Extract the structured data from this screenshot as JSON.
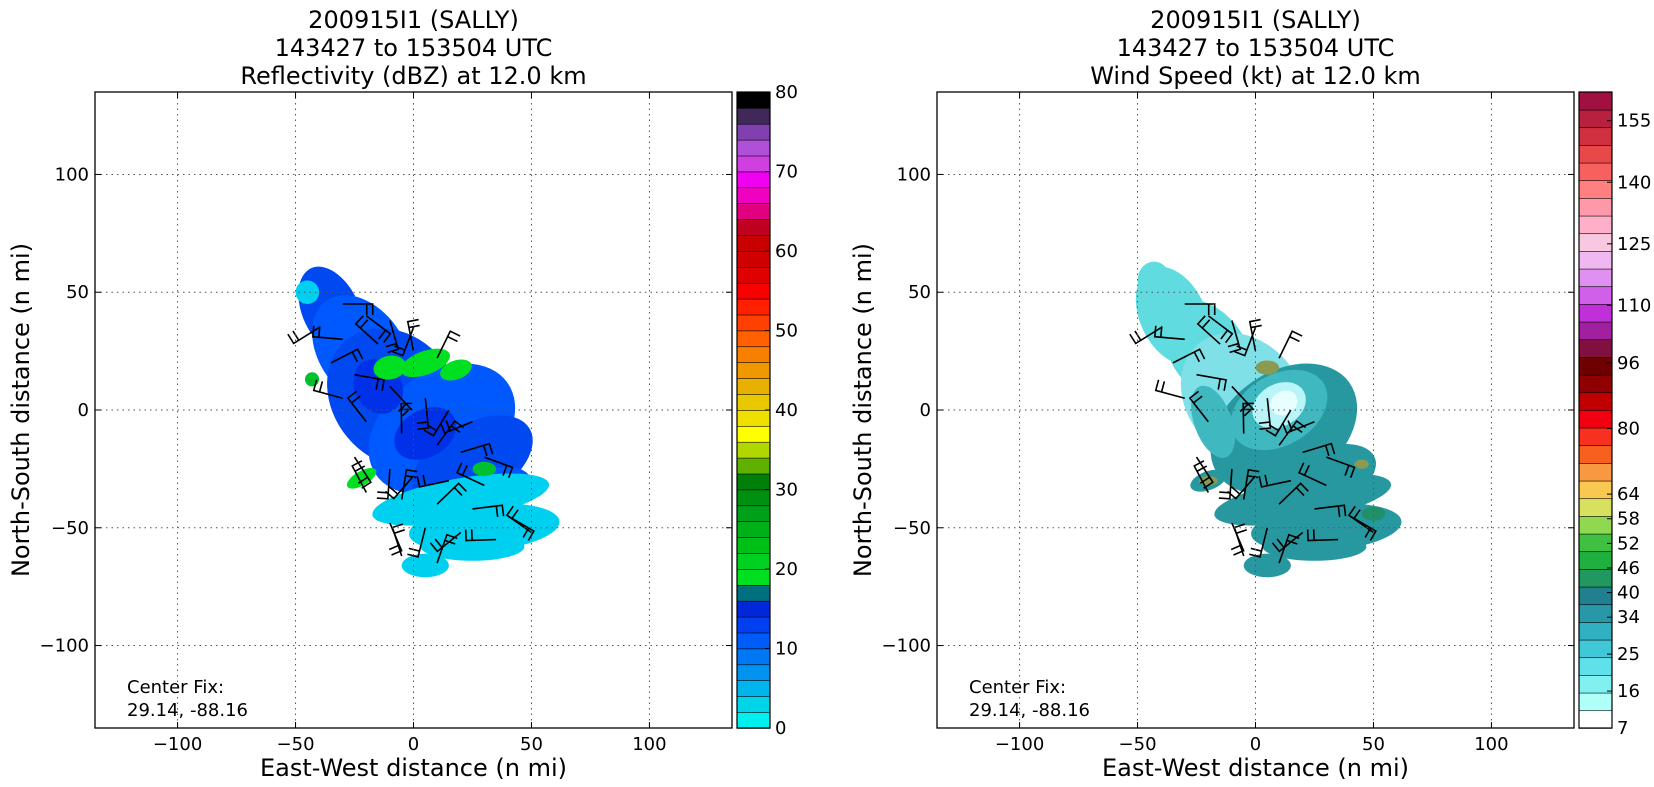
{
  "chart_data": [
    {
      "type": "heatmap",
      "title_lines": [
        "200915I1 (SALLY)",
        "143427 to 153504 UTC",
        "Reflectivity (dBZ) at 12.0 km"
      ],
      "xlabel": "East-West distance (n mi)",
      "ylabel": "North-South distance (n mi)",
      "xlim": [
        -135,
        135
      ],
      "ylim": [
        -135,
        135
      ],
      "xticks": [
        -100,
        -50,
        0,
        50,
        100
      ],
      "yticks": [
        -100,
        -50,
        0,
        50,
        100
      ],
      "xtick_labels": [
        "−100",
        "−50",
        "0",
        "50",
        "100"
      ],
      "ytick_labels": [
        "−100",
        "−50",
        "0",
        "50",
        "100"
      ],
      "grid": true,
      "annotation": [
        "Center Fix:",
        "29.14, -88.16"
      ],
      "colorbar": {
        "min": 0,
        "max": 80,
        "tick_values": [
          0,
          10,
          20,
          30,
          40,
          50,
          60,
          70,
          80
        ],
        "tick_labels": [
          "0",
          "10",
          "20",
          "30",
          "40",
          "50",
          "60",
          "70",
          "80"
        ],
        "colors": [
          "#00f0f0",
          "#00d4e8",
          "#00b4ec",
          "#0094f0",
          "#0078f4",
          "#005cf8",
          "#0040f0",
          "#0028d8",
          "#00707f",
          "#00e020",
          "#00d020",
          "#00c018",
          "#00b018",
          "#00a018",
          "#009010",
          "#008008",
          "#60b000",
          "#b0d800",
          "#ffff00",
          "#f0e000",
          "#e8c800",
          "#e8b000",
          "#f09800",
          "#f88000",
          "#ff6000",
          "#ff4000",
          "#ff2000",
          "#f80000",
          "#e00000",
          "#d00000",
          "#c80000",
          "#c00020",
          "#e00080",
          "#f000c0",
          "#f000f0",
          "#d040e0",
          "#b050d8",
          "#8040b0",
          "#402858",
          "#000000"
        ]
      },
      "field": {
        "colors": [
          "#00a8f0",
          "#0048f0",
          "#0058ff",
          "#0030e8",
          "#00e020",
          "#00c030",
          "#00d0f0",
          "#00a0b0"
        ],
        "blobs": [
          {
            "x": -35,
            "y": 42,
            "rx": 12,
            "ry": 20,
            "rot": -25,
            "c": 1
          },
          {
            "x": -22,
            "y": 25,
            "rx": 18,
            "ry": 26,
            "rot": -35,
            "c": 2
          },
          {
            "x": -8,
            "y": 5,
            "rx": 26,
            "ry": 32,
            "rot": -40,
            "c": 1
          },
          {
            "x": 12,
            "y": -8,
            "rx": 34,
            "ry": 24,
            "rot": -35,
            "c": 2
          },
          {
            "x": 25,
            "y": -22,
            "rx": 28,
            "ry": 16,
            "rot": -30,
            "c": 1
          },
          {
            "x": 35,
            "y": -35,
            "rx": 16,
            "ry": 10,
            "rot": -20,
            "c": 2
          },
          {
            "x": 5,
            "y": -10,
            "rx": 14,
            "ry": 10,
            "rot": -30,
            "c": 3
          },
          {
            "x": -15,
            "y": 10,
            "rx": 10,
            "ry": 12,
            "rot": -30,
            "c": 3
          },
          {
            "x": 20,
            "y": -38,
            "rx": 38,
            "ry": 9,
            "rot": -10,
            "c": 6
          },
          {
            "x": 30,
            "y": -50,
            "rx": 32,
            "ry": 10,
            "rot": -5,
            "c": 6
          },
          {
            "x": 25,
            "y": -58,
            "rx": 22,
            "ry": 6,
            "rot": 0,
            "c": 6
          },
          {
            "x": 5,
            "y": -66,
            "rx": 10,
            "ry": 5,
            "rot": 0,
            "c": 6
          },
          {
            "x": -45,
            "y": 50,
            "rx": 5,
            "ry": 5,
            "rot": 0,
            "c": 6
          },
          {
            "x": -10,
            "y": 18,
            "rx": 7,
            "ry": 5,
            "rot": -10,
            "c": 4
          },
          {
            "x": 5,
            "y": 20,
            "rx": 11,
            "ry": 5,
            "rot": -20,
            "c": 4
          },
          {
            "x": 18,
            "y": 17,
            "rx": 7,
            "ry": 4,
            "rot": -20,
            "c": 4
          },
          {
            "x": 30,
            "y": -25,
            "rx": 5,
            "ry": 3,
            "rot": 0,
            "c": 5
          },
          {
            "x": -22,
            "y": -29,
            "rx": 7,
            "ry": 3,
            "rot": -30,
            "c": 4
          },
          {
            "x": -43,
            "y": 13,
            "rx": 3,
            "ry": 3,
            "rot": 0,
            "c": 5
          }
        ]
      }
    },
    {
      "type": "heatmap",
      "title_lines": [
        "200915I1 (SALLY)",
        "143427 to 153504 UTC",
        "Wind Speed (kt) at 12.0 km"
      ],
      "xlabel": "East-West distance (n mi)",
      "ylabel": "North-South distance (n mi)",
      "xlim": [
        -135,
        135
      ],
      "ylim": [
        -135,
        135
      ],
      "xticks": [
        -100,
        -50,
        0,
        50,
        100
      ],
      "yticks": [
        -100,
        -50,
        0,
        50,
        100
      ],
      "xtick_labels": [
        "−100",
        "−50",
        "0",
        "50",
        "100"
      ],
      "ytick_labels": [
        "−100",
        "−50",
        "0",
        "50",
        "100"
      ],
      "grid": true,
      "annotation": [
        "Center Fix:",
        "29.14, -88.16"
      ],
      "colorbar": {
        "min": 7,
        "max": 162,
        "tick_values": [
          7,
          16,
          25,
          34,
          40,
          46,
          52,
          58,
          64,
          80,
          96,
          110,
          125,
          140,
          155
        ],
        "tick_labels": [
          "7",
          "16",
          "25",
          "34",
          "40",
          "46",
          "52",
          "58",
          "64",
          "80",
          "96",
          "110",
          "125",
          "140",
          "155"
        ],
        "colors": [
          "#ffffff",
          "#b0fff8",
          "#80f0f0",
          "#60e0e8",
          "#40c8d8",
          "#30b0c0",
          "#2898a8",
          "#208090",
          "#209860",
          "#20b040",
          "#40c040",
          "#90d850",
          "#d8e060",
          "#f8c850",
          "#f89840",
          "#f86020",
          "#f83020",
          "#f00010",
          "#c00000",
          "#900000",
          "#700000",
          "#801040",
          "#a020a0",
          "#c030d8",
          "#d060e8",
          "#e090f0",
          "#f0b8f0",
          "#f8c8e0",
          "#ffb0c8",
          "#ff98a8",
          "#ff8080",
          "#f86060",
          "#e84848",
          "#d03040",
          "#b82040",
          "#a01040"
        ]
      },
      "field": {
        "colors": [
          "#60dce0",
          "#2898a0",
          "#40b8c0",
          "#b8f4f8",
          "#e8ffff",
          "#80e0e8",
          "#20906a",
          "#8a9a50"
        ],
        "blobs": [
          {
            "x": -35,
            "y": 40,
            "rx": 14,
            "ry": 22,
            "rot": -25,
            "c": 0
          },
          {
            "x": -20,
            "y": 25,
            "rx": 16,
            "ry": 24,
            "rot": -35,
            "c": 0
          },
          {
            "x": -5,
            "y": 5,
            "rx": 24,
            "ry": 30,
            "rot": -40,
            "c": 5
          },
          {
            "x": 12,
            "y": -8,
            "rx": 34,
            "ry": 24,
            "rot": -35,
            "c": 1
          },
          {
            "x": 10,
            "y": 0,
            "rx": 22,
            "ry": 15,
            "rot": -30,
            "c": 2
          },
          {
            "x": 10,
            "y": 2,
            "rx": 12,
            "ry": 9,
            "rot": -30,
            "c": 3
          },
          {
            "x": 12,
            "y": 3,
            "rx": 6,
            "ry": 5,
            "rot": -30,
            "c": 4
          },
          {
            "x": 30,
            "y": -28,
            "rx": 22,
            "ry": 12,
            "rot": -20,
            "c": 1
          },
          {
            "x": 20,
            "y": -38,
            "rx": 38,
            "ry": 9,
            "rot": -10,
            "c": 1
          },
          {
            "x": 30,
            "y": -50,
            "rx": 32,
            "ry": 10,
            "rot": -5,
            "c": 1
          },
          {
            "x": 25,
            "y": -58,
            "rx": 22,
            "ry": 6,
            "rot": 0,
            "c": 1
          },
          {
            "x": 5,
            "y": -66,
            "rx": 10,
            "ry": 5,
            "rot": 0,
            "c": 1
          },
          {
            "x": -43,
            "y": 55,
            "rx": 7,
            "ry": 8,
            "rot": 0,
            "c": 0
          },
          {
            "x": -18,
            "y": -5,
            "rx": 8,
            "ry": 16,
            "rot": -20,
            "c": 2
          },
          {
            "x": -20,
            "y": -30,
            "rx": 8,
            "ry": 4,
            "rot": -20,
            "c": 1
          },
          {
            "x": 5,
            "y": 18,
            "rx": 5,
            "ry": 3,
            "rot": 0,
            "c": 7
          },
          {
            "x": -20,
            "y": -30,
            "rx": 4,
            "ry": 2,
            "rot": 0,
            "c": 7
          },
          {
            "x": 45,
            "y": -23,
            "rx": 3,
            "ry": 2,
            "rot": 0,
            "c": 7
          },
          {
            "x": 50,
            "y": -44,
            "rx": 5,
            "ry": 3,
            "rot": 0,
            "c": 6
          }
        ]
      }
    }
  ]
}
